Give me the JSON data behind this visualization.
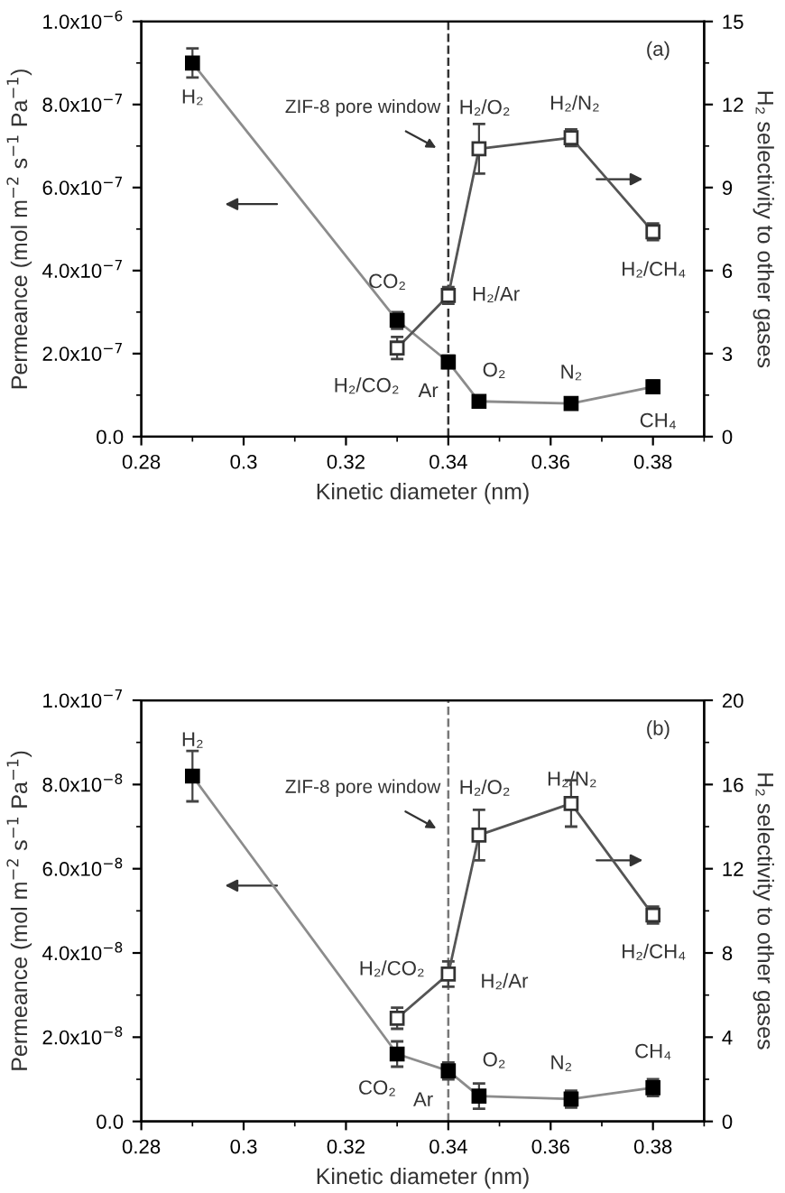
{
  "chart_data": [
    {
      "type": "line",
      "xlabel": "Kinetic diameter (nm)",
      "ylabel": "Permeance (mol m$^{−2}$ s$^{−1}$ Pa$^{−1}$)",
      "y2label": "H₂ selectivity to other gases",
      "marker": "square",
      "line_style": "solid",
      "grid": false,
      "legend": false,
      "series": [
        {
          "color": "#8c8c8c",
          "x": [
            0.29,
            0.33,
            0.34,
            0.346,
            0.364,
            0.38
          ],
          "values": [
            9e-07,
            2.8e-07,
            1.8e-07,
            8.5e-08,
            8e-08,
            1.2e-07
          ],
          "errors": [
            3.5e-08,
            2e-08,
            1.5e-08,
            1e-08,
            1e-08,
            1.5e-08
          ]
        },
        {
          "color": "#555555",
          "axis": "y2",
          "x": [
            0.33,
            0.34,
            0.346,
            0.364,
            0.38
          ],
          "values": [
            3.2,
            5.1,
            10.4,
            10.8,
            7.4
          ],
          "errors": [
            0.4,
            0.3,
            0.9,
            0.3,
            0.3
          ]
        }
      ],
      "xlim": [
        0.28,
        0.39
      ],
      "xticks": [
        0.28,
        0.3,
        0.32,
        0.34,
        0.36,
        0.38
      ],
      "ylim": [
        0,
        1e-06
      ],
      "yticks": [
        {
          "value": 0,
          "label": "0.0"
        },
        {
          "value": 2e-07,
          "label": "2.0x10$^{−7}$"
        },
        {
          "value": 4e-07,
          "label": "4.0x10$^{−7}$"
        },
        {
          "value": 6e-07,
          "label": "6.0x10$^{−7}$"
        },
        {
          "value": 8e-07,
          "label": "8.0x10$^{−7}$"
        },
        {
          "value": 1e-06,
          "label": "1.0x10$^{−6}$"
        }
      ],
      "y2lim": [
        0,
        15
      ],
      "y2ticks": [
        0,
        3,
        6,
        9,
        12,
        15
      ],
      "ref_lines": [
        {
          "axis": "x",
          "value": 0.34,
          "label": "ZIF-8 pore window",
          "line_style": "dashed",
          "color": "#333333"
        }
      ],
      "annotations": [
        "(a)",
        {
          "text": "H₂",
          "x": 0.29,
          "y": 9e-07
        },
        {
          "text": "CO₂",
          "x": 0.33,
          "y": 2.8e-07
        },
        {
          "text": "Ar",
          "x": 0.34,
          "y": 1.8e-07
        },
        {
          "text": "O₂",
          "x": 0.346,
          "y": 8.5e-08
        },
        {
          "text": "N₂",
          "x": 0.364,
          "y": 8e-08
        },
        {
          "text": "CH₄",
          "x": 0.38,
          "y": 1.2e-07
        },
        "H₂/CO₂",
        "H₂/Ar",
        "H₂/O₂",
        "H₂/N₂",
        "H₂/CH₄"
      ]
    },
    {
      "type": "line",
      "xlabel": "Kinetic diameter (nm)",
      "ylabel": "Permeance (mol m$^{−2}$ s$^{−1}$ Pa$^{−1}$)",
      "y2label": "H₂ selectivity to other gases",
      "marker": "square",
      "line_style": "solid",
      "grid": false,
      "legend": false,
      "series": [
        {
          "color": "#8c8c8c",
          "x": [
            0.29,
            0.33,
            0.34,
            0.346,
            0.364,
            0.38
          ],
          "values": [
            8.2e-08,
            1.6e-08,
            1.2e-08,
            6e-09,
            5.3e-09,
            8e-09
          ],
          "errors": [
            6e-09,
            3e-09,
            2e-09,
            3e-09,
            2e-09,
            2e-09
          ]
        },
        {
          "color": "#555555",
          "axis": "y2",
          "x": [
            0.33,
            0.34,
            0.346,
            0.364,
            0.38
          ],
          "values": [
            4.9,
            7.0,
            13.6,
            15.1,
            9.8
          ],
          "errors": [
            0.5,
            0.6,
            1.2,
            1.1,
            0.4
          ]
        }
      ],
      "xlim": [
        0.28,
        0.39
      ],
      "xticks": [
        0.28,
        0.3,
        0.32,
        0.34,
        0.36,
        0.38
      ],
      "ylim": [
        0,
        1e-07
      ],
      "yticks": [
        {
          "value": 0,
          "label": "0.0"
        },
        {
          "value": 2e-08,
          "label": "2.0x10$^{−8}$"
        },
        {
          "value": 4e-08,
          "label": "4.0x10$^{−8}$"
        },
        {
          "value": 6e-08,
          "label": "6.0x10$^{−8}$"
        },
        {
          "value": 8e-08,
          "label": "8.0x10$^{−8}$"
        },
        {
          "value": 1e-07,
          "label": "1.0x10$^{−7}$"
        }
      ],
      "y2lim": [
        0,
        20
      ],
      "y2ticks": [
        0,
        4,
        8,
        12,
        16,
        20
      ],
      "ref_lines": [
        {
          "axis": "x",
          "value": 0.34,
          "label": "ZIF-8 pore window",
          "line_style": "dashed",
          "color": "#777777"
        }
      ],
      "annotations": [
        "(b)",
        {
          "text": "H₂",
          "x": 0.29,
          "y": 8.2e-08
        },
        {
          "text": "CO₂",
          "x": 0.33,
          "y": 1.6e-08
        },
        {
          "text": "Ar",
          "x": 0.34,
          "y": 1.2e-08
        },
        {
          "text": "O₂",
          "x": 0.346,
          "y": 6e-09
        },
        {
          "text": "N₂",
          "x": 0.364,
          "y": 5.3e-09
        },
        {
          "text": "CH₄",
          "x": 0.38,
          "y": 8e-09
        },
        "H₂/CO₂",
        "H₂/Ar",
        "H₂/O₂",
        "H₂/N₂",
        "H₂/CH₄"
      ]
    }
  ]
}
